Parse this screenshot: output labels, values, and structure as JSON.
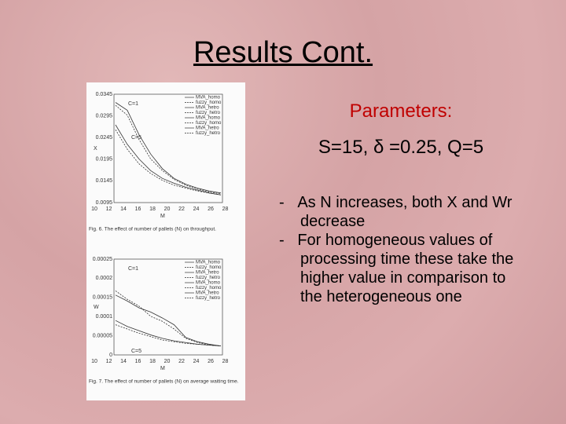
{
  "title": "Results Cont.",
  "parameters": {
    "heading": "Parameters:",
    "line": "S=15, δ =0.25, Q=5"
  },
  "bullets": [
    "As N increases, both X and Wr decrease",
    "For homogeneous values of processing time these take the higher value in comparison to the heterogeneous one"
  ],
  "figures": [
    {
      "ylabel": "X",
      "xlabel": "M",
      "yticks": [
        "0.0345",
        "0.0295",
        "0.0245",
        "0.0195",
        "0.0145",
        "0.0095"
      ],
      "xticks": [
        "10",
        "12",
        "14",
        "16",
        "18",
        "20",
        "22",
        "24",
        "26",
        "28"
      ],
      "annotations": [
        "C=1",
        "C=5"
      ],
      "legend": [
        "MVA_homo",
        "fuzzy_homo",
        "MVA_hetro",
        "fuzzy_hetro",
        "MVA_homo",
        "fuzzy_homo",
        "MVA_hetro",
        "fuzzy_hetro"
      ],
      "caption": "Fig. 6. The effect of number of pallets (N) on throughput."
    },
    {
      "ylabel": "W",
      "xlabel": "M",
      "yticks": [
        "0.00025",
        "0.0002",
        "0.00015",
        "0.0001",
        "0.00005",
        "0"
      ],
      "xticks": [
        "10",
        "12",
        "14",
        "16",
        "18",
        "20",
        "22",
        "24",
        "26",
        "28"
      ],
      "annotations": [
        "C=1",
        "C=5"
      ],
      "legend": [
        "MVA_homo",
        "fuzzy_homo",
        "MVA_hetro",
        "fuzzy_hetro",
        "MVA_homo",
        "fuzzy_homo",
        "MVA_hetro",
        "fuzzy_hetro"
      ],
      "caption": "Fig. 7. The effect of number of pallets (N) on average waiting time."
    }
  ]
}
